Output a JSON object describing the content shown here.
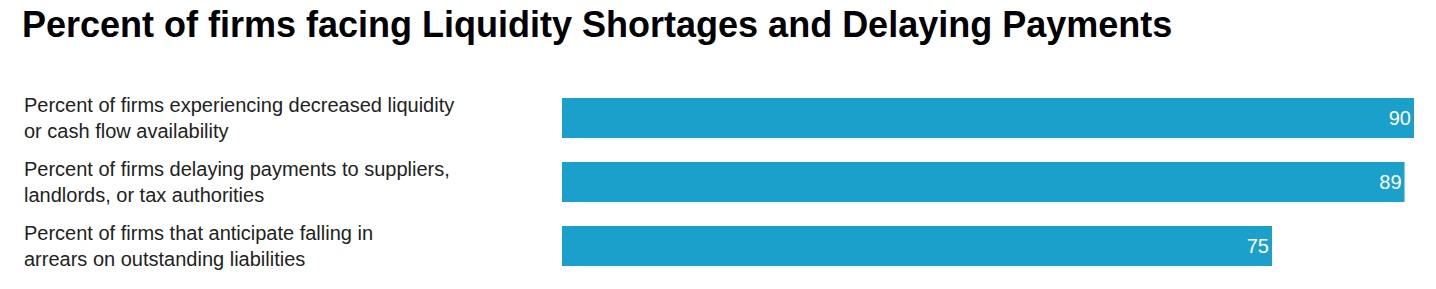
{
  "chart_data": {
    "type": "bar",
    "title": "Percent of firms facing Liquidity Shortages and Delaying Payments",
    "categories": [
      "Percent of firms experiencing decreased liquidity or cash flow availability",
      "Percent of firms delaying payments to suppliers, landlords, or tax authorities",
      "Percent of firms that anticipate falling in arrears on outstanding liabilities"
    ],
    "values": [
      90,
      89,
      75
    ],
    "color": "#1aa0cb",
    "orientation": "horizontal",
    "xlim": [
      0,
      90
    ],
    "data_labels": true,
    "tick_labels": false,
    "grid": false
  }
}
